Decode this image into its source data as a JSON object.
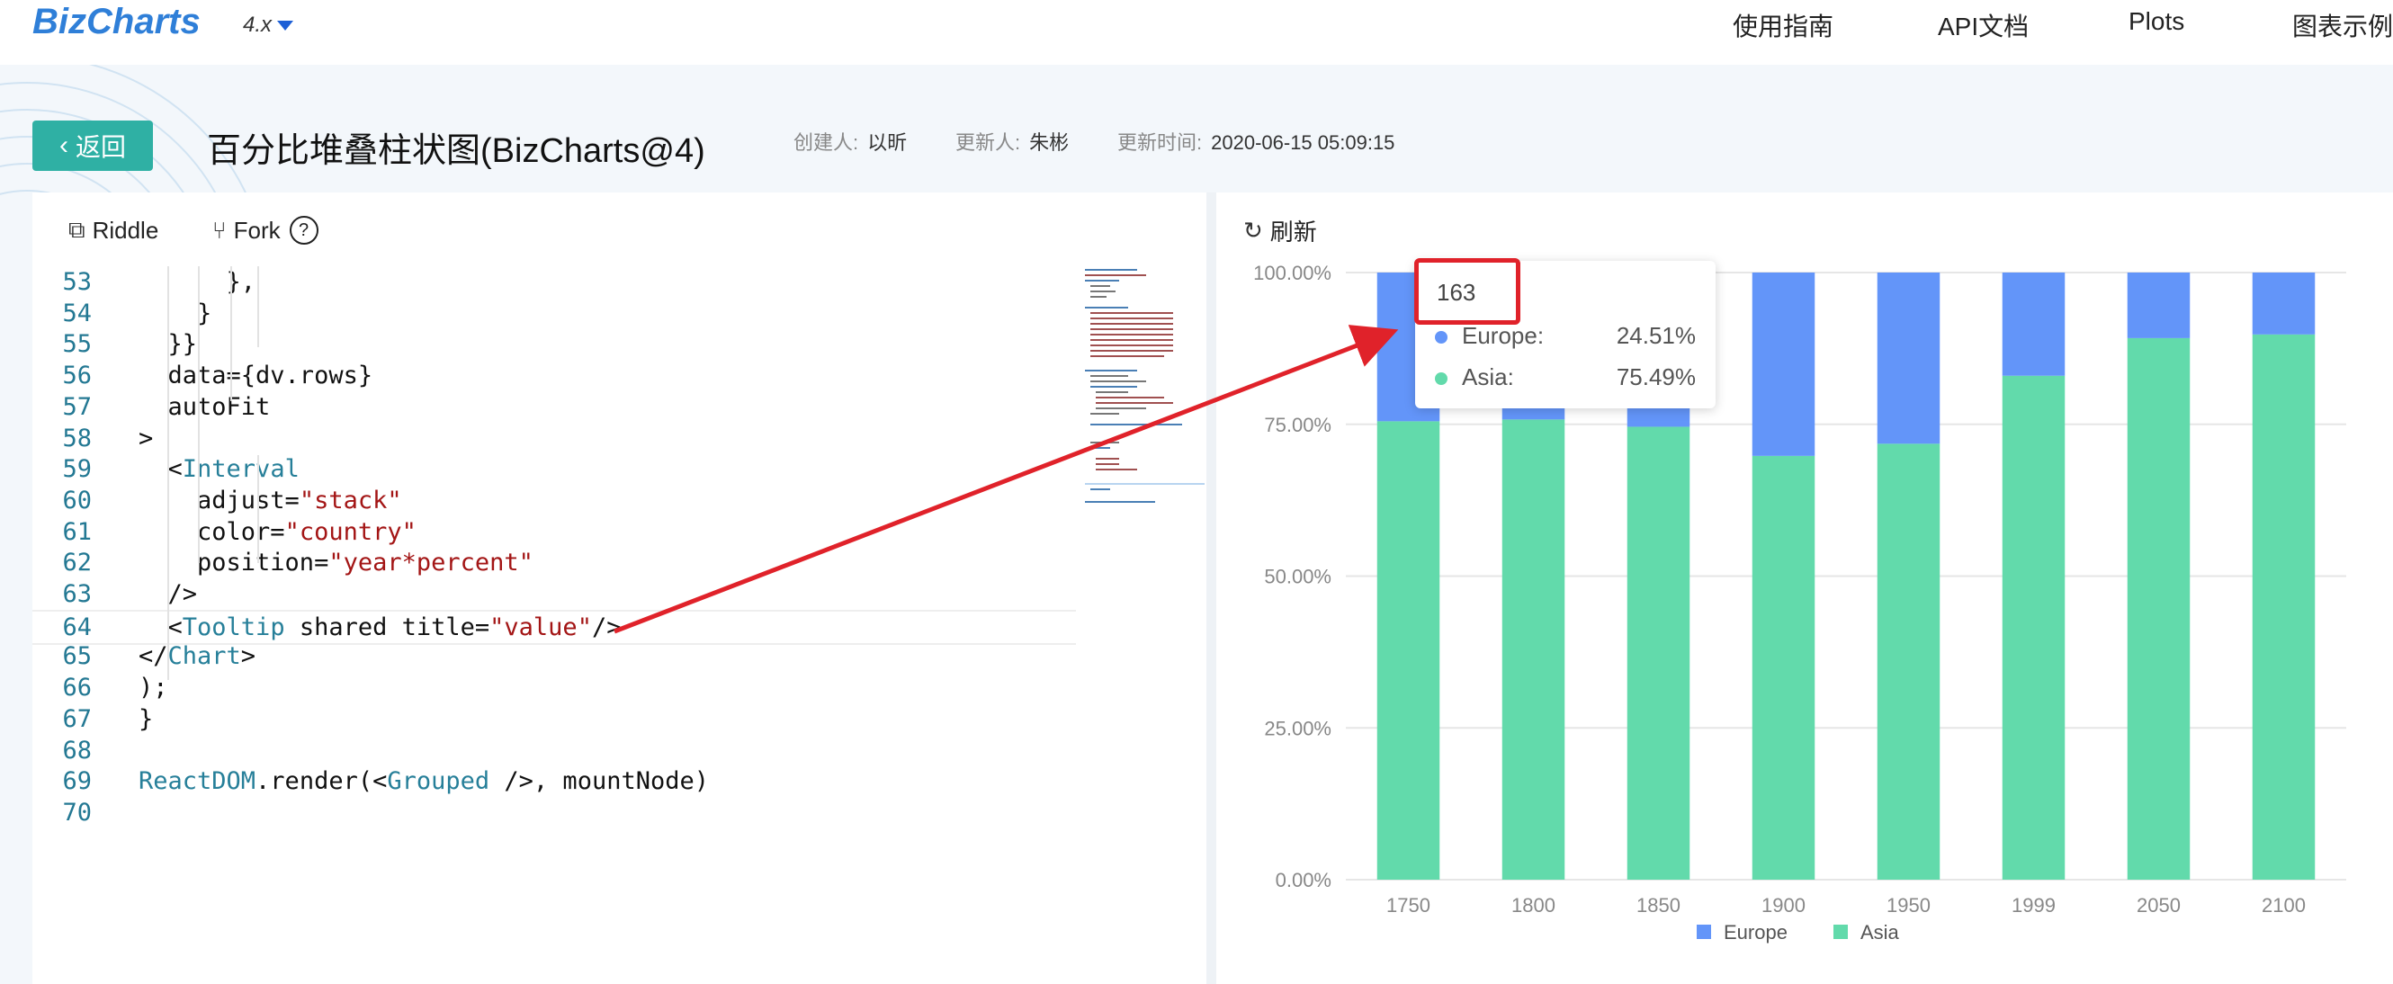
{
  "nav": {
    "logo": "BizCharts",
    "version": "4.x",
    "items": [
      "使用指南",
      "API文档",
      "Plots",
      "图表示例"
    ]
  },
  "header": {
    "back_label": "返回",
    "title": "百分比堆叠柱状图(BizCharts@4)",
    "creator_label": "创建人:",
    "creator": "以昕",
    "updater_label": "更新人:",
    "updater": "朱彬",
    "updated_label": "更新时间:",
    "updated": "2020-06-15 05:09:15"
  },
  "toolbar": {
    "riddle_label": "Riddle",
    "fork_label": "Fork",
    "refresh_label": "刷新",
    "icons": {
      "riddle": "riddle-icon",
      "fork": "fork-icon",
      "help": "help-icon",
      "refresh": "refresh-icon"
    }
  },
  "code_lines": [
    {
      "n": "53",
      "text": "      },"
    },
    {
      "n": "54",
      "text": "    }"
    },
    {
      "n": "55",
      "text": "  }}"
    },
    {
      "n": "56",
      "text": "  data={dv.rows}"
    },
    {
      "n": "57",
      "text": "  autoFit"
    },
    {
      "n": "58",
      "text": ">"
    },
    {
      "n": "59",
      "text": "  <Interval"
    },
    {
      "n": "60",
      "text": "    adjust=\"stack\""
    },
    {
      "n": "61",
      "text": "    color=\"country\""
    },
    {
      "n": "62",
      "text": "    position=\"year*percent\""
    },
    {
      "n": "63",
      "text": "  />"
    },
    {
      "n": "64",
      "text": "  <Tooltip shared title=\"value\"/>"
    },
    {
      "n": "65",
      "text": "</Chart>"
    },
    {
      "n": "66",
      "text": ");"
    },
    {
      "n": "67",
      "text": "}"
    },
    {
      "n": "68",
      "text": ""
    },
    {
      "n": "69",
      "text": "ReactDOM.render(<Grouped />, mountNode)"
    },
    {
      "n": "70",
      "text": ""
    }
  ],
  "tooltip": {
    "title": "163",
    "rows": [
      {
        "name": "Europe:",
        "value": "24.51%",
        "color": "#6395f9"
      },
      {
        "name": "Asia:",
        "value": "75.49%",
        "color": "#62daab"
      }
    ]
  },
  "chart_data": {
    "type": "bar",
    "stacked": true,
    "categories": [
      "1750",
      "1800",
      "1850",
      "1900",
      "1950",
      "1999",
      "2050",
      "2100"
    ],
    "series": [
      {
        "name": "Asia",
        "color": "#62daab",
        "values": [
          75.5,
          75.8,
          74.6,
          69.8,
          71.8,
          83.0,
          89.2,
          89.8
        ]
      },
      {
        "name": "Europe",
        "color": "#6395f9",
        "values": [
          24.5,
          24.2,
          25.4,
          30.2,
          28.2,
          17.0,
          10.8,
          10.2
        ]
      }
    ],
    "ylim": [
      0,
      100
    ],
    "yticks": [
      "0.00%",
      "25.00%",
      "50.00%",
      "75.00%",
      "100.00%"
    ],
    "grid": true,
    "legend": [
      {
        "name": "Europe",
        "color": "#6395f9"
      },
      {
        "name": "Asia",
        "color": "#62daab"
      }
    ],
    "legend_position": "bottom"
  },
  "colors": {
    "accent": "#2fb0a4",
    "brand": "#2f7fd8",
    "annotation": "#e0222a"
  }
}
